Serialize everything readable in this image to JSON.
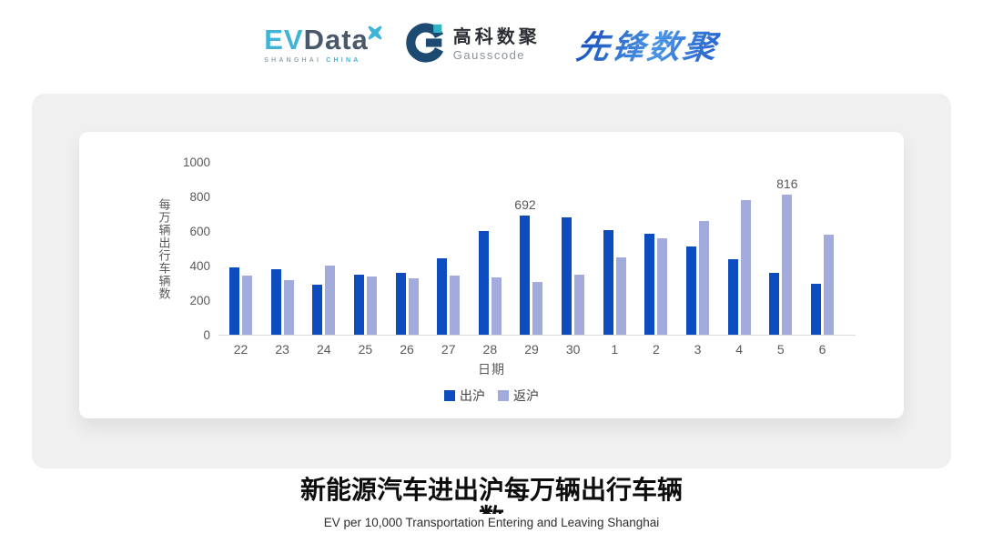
{
  "header": {
    "evdata": {
      "ev": "EV",
      "data": "Data",
      "sub_left": "SHANGHAI",
      "sub_right": "CHINA"
    },
    "gausscode": {
      "cn": "高科数聚",
      "en": "Gausscode"
    },
    "pioneer": {
      "text": "先锋数聚"
    }
  },
  "chart_data": {
    "type": "bar",
    "title": "新能源汽车进出沪每万辆出行车辆数",
    "subtitle": "EV per 10,000 Transportation Entering and Leaving Shanghai",
    "xlabel": "日期",
    "ylabel": "每万辆出行车辆数",
    "ylim": [
      0,
      1000
    ],
    "yticks": [
      0,
      200,
      400,
      600,
      800,
      1000
    ],
    "grid": false,
    "legend_position": "bottom",
    "categories": [
      "22",
      "23",
      "24",
      "25",
      "26",
      "27",
      "28",
      "29",
      "30",
      "1",
      "2",
      "3",
      "4",
      "5",
      "6"
    ],
    "series": [
      {
        "name": "出沪",
        "color": "#0d4cbe",
        "values": [
          390,
          380,
          292,
          348,
          358,
          445,
          605,
          692,
          680,
          608,
          585,
          515,
          440,
          358,
          298
        ],
        "labels": {
          "7": "692"
        }
      },
      {
        "name": "返沪",
        "color": "#a2abdc",
        "values": [
          342,
          318,
          400,
          340,
          328,
          345,
          335,
          308,
          350,
          450,
          562,
          660,
          785,
          816,
          583
        ],
        "labels": {
          "13": "816"
        }
      }
    ]
  },
  "footer": {
    "title_line1": "新能源汽车进出沪每万辆出行车辆",
    "title_line2": "数",
    "subtitle": "EV per 10,000 Transportation Entering and Leaving Shanghai"
  }
}
